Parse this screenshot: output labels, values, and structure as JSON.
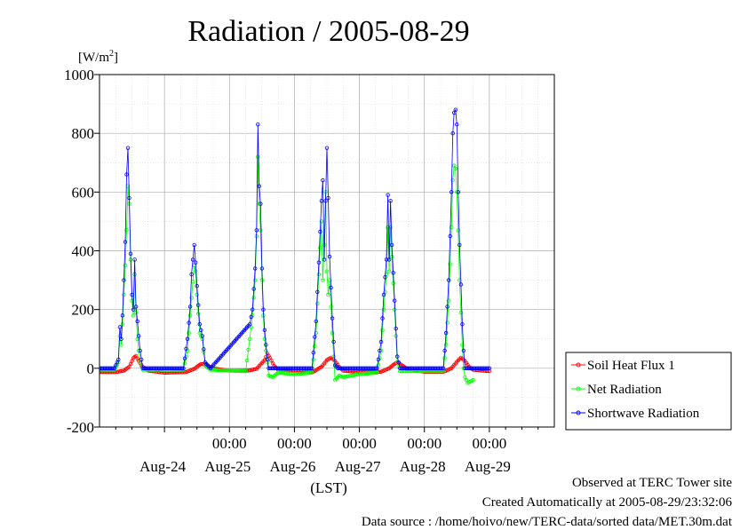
{
  "chart_data": {
    "type": "line",
    "title": "Radiation / 2005-08-29",
    "ylabel": "[W/m",
    "ylabel_superscript": "2",
    "ylabel_close": "]",
    "xlabel": "(LST)",
    "ylim": [
      -200,
      1000
    ],
    "xlim": [
      "2005-08-23T00:00",
      "2005-08-30T00:00"
    ],
    "yticks": [
      "1000",
      "800",
      "600",
      "400",
      "200",
      "0",
      "-200"
    ],
    "xticks_time": [
      "00:00",
      "00:00",
      "00:00",
      "00:00",
      "00:00"
    ],
    "xticks_date": [
      "Aug-24",
      "Aug-25",
      "Aug-26",
      "Aug-27",
      "Aug-28",
      "Aug-29"
    ],
    "grid": true,
    "legend_position": "right-bottom, outside plot",
    "series": [
      {
        "name": "Soil Heat Flux 1",
        "color": "#ff0000",
        "points": [
          [
            "2005-08-23T00:00",
            -13
          ],
          [
            "2005-08-23T06:00",
            -13
          ],
          [
            "2005-08-23T09:00",
            -8
          ],
          [
            "2005-08-23T11:00",
            5
          ],
          [
            "2005-08-23T12:30",
            35
          ],
          [
            "2005-08-23T13:30",
            42
          ],
          [
            "2005-08-23T14:30",
            25
          ],
          [
            "2005-08-23T16:00",
            5
          ],
          [
            "2005-08-23T18:00",
            -8
          ],
          [
            "2005-08-24T00:00",
            -15
          ],
          [
            "2005-08-24T08:00",
            -13
          ],
          [
            "2005-08-24T11:00",
            -2
          ],
          [
            "2005-08-24T13:30",
            15
          ],
          [
            "2005-08-24T15:30",
            12
          ],
          [
            "2005-08-24T17:30",
            0
          ],
          [
            "2005-08-25T00:00",
            -8
          ],
          [
            "2005-08-25T07:00",
            -8
          ],
          [
            "2005-08-25T10:00",
            -2
          ],
          [
            "2005-08-25T13:00",
            28
          ],
          [
            "2005-08-25T14:00",
            50
          ],
          [
            "2005-08-25T15:00",
            35
          ],
          [
            "2005-08-25T16:30",
            8
          ],
          [
            "2005-08-25T18:00",
            -5
          ],
          [
            "2005-08-26T00:00",
            -10
          ],
          [
            "2005-08-26T07:00",
            -12
          ],
          [
            "2005-08-26T10:00",
            5
          ],
          [
            "2005-08-26T12:00",
            28
          ],
          [
            "2005-08-26T13:30",
            36
          ],
          [
            "2005-08-26T15:00",
            25
          ],
          [
            "2005-08-26T16:30",
            5
          ],
          [
            "2005-08-26T18:00",
            -8
          ],
          [
            "2005-08-27T00:00",
            -13
          ],
          [
            "2005-08-27T08:00",
            -12
          ],
          [
            "2005-08-27T11:00",
            0
          ],
          [
            "2005-08-27T13:00",
            15
          ],
          [
            "2005-08-27T14:00",
            20
          ],
          [
            "2005-08-27T15:30",
            12
          ],
          [
            "2005-08-27T17:30",
            -2
          ],
          [
            "2005-08-28T00:00",
            -12
          ],
          [
            "2005-08-28T07:00",
            -12
          ],
          [
            "2005-08-28T10:00",
            0
          ],
          [
            "2005-08-28T12:00",
            22
          ],
          [
            "2005-08-28T13:30",
            36
          ],
          [
            "2005-08-28T15:00",
            25
          ],
          [
            "2005-08-28T16:30",
            5
          ],
          [
            "2005-08-28T18:00",
            -5
          ],
          [
            "2005-08-29T00:00",
            -10
          ]
        ]
      },
      {
        "name": "Net Radiation",
        "color": "#00ff00",
        "points": [
          [
            "2005-08-23T00:00",
            -5
          ],
          [
            "2005-08-23T05:30",
            -5
          ],
          [
            "2005-08-23T07:00",
            20
          ],
          [
            "2005-08-23T07:30",
            110
          ],
          [
            "2005-08-23T08:00",
            80
          ],
          [
            "2005-08-23T08:30",
            150
          ],
          [
            "2005-08-23T09:00",
            250
          ],
          [
            "2005-08-23T09:30",
            350
          ],
          [
            "2005-08-23T10:00",
            470
          ],
          [
            "2005-08-23T10:30",
            620
          ],
          [
            "2005-08-23T11:00",
            560
          ],
          [
            "2005-08-23T11:30",
            370
          ],
          [
            "2005-08-23T12:00",
            230
          ],
          [
            "2005-08-23T12:30",
            180
          ],
          [
            "2005-08-23T13:00",
            320
          ],
          [
            "2005-08-23T13:30",
            190
          ],
          [
            "2005-08-23T14:00",
            100
          ],
          [
            "2005-08-23T15:00",
            20
          ],
          [
            "2005-08-23T16:00",
            -5
          ],
          [
            "2005-08-24T07:00",
            -5
          ],
          [
            "2005-08-24T08:30",
            60
          ],
          [
            "2005-08-24T09:30",
            180
          ],
          [
            "2005-08-24T10:00",
            240
          ],
          [
            "2005-08-24T11:00",
            350
          ],
          [
            "2005-08-24T11:30",
            330
          ],
          [
            "2005-08-24T12:00",
            250
          ],
          [
            "2005-08-24T13:00",
            120
          ],
          [
            "2005-08-24T14:00",
            100
          ],
          [
            "2005-08-24T15:00",
            10
          ],
          [
            "2005-08-24T17:00",
            -5
          ],
          [
            "2005-08-25T06:00",
            -10
          ],
          [
            "2005-08-25T07:30",
            100
          ],
          [
            "2005-08-25T08:30",
            180
          ],
          [
            "2005-08-25T09:30",
            300
          ],
          [
            "2005-08-25T10:00",
            450
          ],
          [
            "2005-08-25T10:30",
            720
          ],
          [
            "2005-08-25T11:00",
            560
          ],
          [
            "2005-08-25T11:30",
            470
          ],
          [
            "2005-08-25T12:00",
            300
          ],
          [
            "2005-08-25T12:30",
            180
          ],
          [
            "2005-08-25T13:00",
            100
          ],
          [
            "2005-08-25T14:00",
            20
          ],
          [
            "2005-08-25T14:30",
            -25
          ],
          [
            "2005-08-25T16:00",
            -30
          ],
          [
            "2005-08-25T18:00",
            -15
          ],
          [
            "2005-08-26T00:00",
            -20
          ],
          [
            "2005-08-26T06:30",
            -15
          ],
          [
            "2005-08-26T08:00",
            120
          ],
          [
            "2005-08-26T09:00",
            320
          ],
          [
            "2005-08-26T10:00",
            500
          ],
          [
            "2005-08-26T10:30",
            300
          ],
          [
            "2005-08-26T11:00",
            420
          ],
          [
            "2005-08-26T11:30",
            600
          ],
          [
            "2005-08-26T12:00",
            330
          ],
          [
            "2005-08-26T12:30",
            250
          ],
          [
            "2005-08-26T13:00",
            300
          ],
          [
            "2005-08-26T14:00",
            120
          ],
          [
            "2005-08-26T15:00",
            -40
          ],
          [
            "2005-08-26T16:30",
            -25
          ],
          [
            "2005-08-26T18:00",
            -30
          ],
          [
            "2005-08-27T00:00",
            -20
          ],
          [
            "2005-08-27T06:30",
            -15
          ],
          [
            "2005-08-27T08:00",
            60
          ],
          [
            "2005-08-27T09:00",
            200
          ],
          [
            "2005-08-27T10:00",
            320
          ],
          [
            "2005-08-27T10:30",
            480
          ],
          [
            "2005-08-27T11:00",
            330
          ],
          [
            "2005-08-27T11:30",
            480
          ],
          [
            "2005-08-27T12:00",
            380
          ],
          [
            "2005-08-27T13:00",
            200
          ],
          [
            "2005-08-27T14:00",
            20
          ],
          [
            "2005-08-27T15:00",
            -10
          ],
          [
            "2005-08-28T07:00",
            -10
          ],
          [
            "2005-08-28T08:00",
            80
          ],
          [
            "2005-08-28T09:00",
            230
          ],
          [
            "2005-08-28T10:00",
            480
          ],
          [
            "2005-08-28T10:30",
            640
          ],
          [
            "2005-08-28T11:00",
            690
          ],
          [
            "2005-08-28T11:30",
            680
          ],
          [
            "2005-08-28T12:00",
            600
          ],
          [
            "2005-08-28T12:30",
            470
          ],
          [
            "2005-08-28T13:00",
            300
          ],
          [
            "2005-08-28T14:00",
            80
          ],
          [
            "2005-08-28T14:30",
            0
          ],
          [
            "2005-08-28T15:00",
            -30
          ],
          [
            "2005-08-28T16:00",
            -50
          ],
          [
            "2005-08-28T18:00",
            -40
          ]
        ]
      },
      {
        "name": "Shortwave Radiation",
        "color": "#0000ff",
        "points": [
          [
            "2005-08-23T00:00",
            0
          ],
          [
            "2005-08-23T05:30",
            0
          ],
          [
            "2005-08-23T07:00",
            30
          ],
          [
            "2005-08-23T07:30",
            140
          ],
          [
            "2005-08-23T08:00",
            100
          ],
          [
            "2005-08-23T08:30",
            180
          ],
          [
            "2005-08-23T09:00",
            300
          ],
          [
            "2005-08-23T09:30",
            430
          ],
          [
            "2005-08-23T10:00",
            660
          ],
          [
            "2005-08-23T10:30",
            750
          ],
          [
            "2005-08-23T11:00",
            580
          ],
          [
            "2005-08-23T11:30",
            390
          ],
          [
            "2005-08-23T12:00",
            250
          ],
          [
            "2005-08-23T12:30",
            200
          ],
          [
            "2005-08-23T13:00",
            370
          ],
          [
            "2005-08-23T13:30",
            210
          ],
          [
            "2005-08-23T14:00",
            160
          ],
          [
            "2005-08-23T15:00",
            60
          ],
          [
            "2005-08-23T16:00",
            0
          ],
          [
            "2005-08-24T07:00",
            0
          ],
          [
            "2005-08-24T08:30",
            100
          ],
          [
            "2005-08-24T09:30",
            210
          ],
          [
            "2005-08-24T10:00",
            320
          ],
          [
            "2005-08-24T11:00",
            420
          ],
          [
            "2005-08-24T11:30",
            360
          ],
          [
            "2005-08-24T12:00",
            280
          ],
          [
            "2005-08-24T13:00",
            150
          ],
          [
            "2005-08-24T14:00",
            110
          ],
          [
            "2005-08-24T15:00",
            20
          ],
          [
            "2005-08-24T17:00",
            0
          ],
          [
            "2005-08-25T07:30",
            150
          ],
          [
            "2005-08-25T08:30",
            200
          ],
          [
            "2005-08-25T09:30",
            340
          ],
          [
            "2005-08-25T10:00",
            470
          ],
          [
            "2005-08-25T10:30",
            830
          ],
          [
            "2005-08-25T11:00",
            620
          ],
          [
            "2005-08-25T11:30",
            560
          ],
          [
            "2005-08-25T12:00",
            340
          ],
          [
            "2005-08-25T12:30",
            200
          ],
          [
            "2005-08-25T13:00",
            130
          ],
          [
            "2005-08-25T14:00",
            30
          ],
          [
            "2005-08-25T14:30",
            0
          ],
          [
            "2005-08-26T06:30",
            0
          ],
          [
            "2005-08-26T08:00",
            160
          ],
          [
            "2005-08-26T09:00",
            360
          ],
          [
            "2005-08-26T10:00",
            570
          ],
          [
            "2005-08-26T10:30",
            640
          ],
          [
            "2005-08-26T11:00",
            370
          ],
          [
            "2005-08-26T11:30",
            570
          ],
          [
            "2005-08-26T12:00",
            750
          ],
          [
            "2005-08-26T12:30",
            580
          ],
          [
            "2005-08-26T13:00",
            380
          ],
          [
            "2005-08-26T14:00",
            170
          ],
          [
            "2005-08-26T15:00",
            10
          ],
          [
            "2005-08-26T16:00",
            0
          ],
          [
            "2005-08-27T06:30",
            0
          ],
          [
            "2005-08-27T08:00",
            90
          ],
          [
            "2005-08-27T09:00",
            250
          ],
          [
            "2005-08-27T10:00",
            370
          ],
          [
            "2005-08-27T10:30",
            590
          ],
          [
            "2005-08-27T11:00",
            370
          ],
          [
            "2005-08-27T11:30",
            570
          ],
          [
            "2005-08-27T12:00",
            420
          ],
          [
            "2005-08-27T13:00",
            230
          ],
          [
            "2005-08-27T14:00",
            40
          ],
          [
            "2005-08-27T15:00",
            0
          ],
          [
            "2005-08-28T07:00",
            0
          ],
          [
            "2005-08-28T08:00",
            120
          ],
          [
            "2005-08-28T09:00",
            300
          ],
          [
            "2005-08-28T10:00",
            600
          ],
          [
            "2005-08-28T10:30",
            800
          ],
          [
            "2005-08-28T11:00",
            870
          ],
          [
            "2005-08-28T11:30",
            880
          ],
          [
            "2005-08-28T12:00",
            830
          ],
          [
            "2005-08-28T12:30",
            600
          ],
          [
            "2005-08-28T13:00",
            420
          ],
          [
            "2005-08-28T14:00",
            150
          ],
          [
            "2005-08-28T14:30",
            60
          ],
          [
            "2005-08-28T15:00",
            0
          ],
          [
            "2005-08-29T00:00",
            0
          ]
        ]
      }
    ]
  },
  "footer": {
    "site": "Observed at TERC Tower site",
    "created": "Created Automatically at 2005-08-29/23:32:06",
    "source": "Data source : /home/hoivo/new/TERC-data/sorted  data/MET.30m.dat"
  }
}
